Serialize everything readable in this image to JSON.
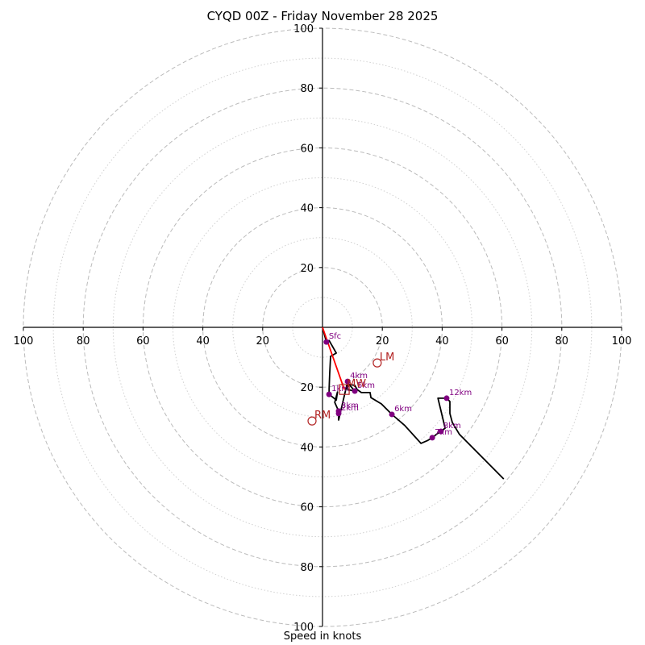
{
  "chart_data": {
    "type": "line",
    "title": "CYQD 00Z - Friday November 28 2025",
    "xlabel": "Speed in knots",
    "ylabel": "",
    "xlim": [
      -100,
      100
    ],
    "ylim": [
      -100,
      100
    ],
    "rings_major": [
      20,
      40,
      60,
      80,
      100
    ],
    "rings_minor": [
      10,
      30,
      50,
      70,
      90
    ],
    "x_tick_labels": [
      "100",
      "80",
      "60",
      "40",
      "20",
      "20",
      "40",
      "60",
      "80",
      "100"
    ],
    "y_tick_labels": [
      "100",
      "80",
      "60",
      "40",
      "20",
      "20",
      "40",
      "60",
      "80",
      "100"
    ],
    "hodograph": {
      "u": [
        0.0,
        1.3,
        2.2,
        4.6,
        2.7,
        2.4,
        2.2,
        2.2,
        4.6,
        5.0,
        4.1,
        5.4,
        5.4,
        8.4,
        8.4,
        10.8,
        8.9,
        10.8,
        11.6,
        13.0,
        15.9,
        16.2,
        19.7,
        23.2,
        27.5,
        32.9,
        35.0,
        36.7,
        38.3,
        39.6,
        41.0,
        38.6,
        41.5,
        42.6,
        42.6,
        43.4,
        45.8,
        60.6
      ],
      "v": [
        0.0,
        -4.9,
        -4.4,
        -8.6,
        -9.7,
        -15.6,
        -20.5,
        -22.4,
        -24.3,
        -21.6,
        -25.1,
        -28.0,
        -31.0,
        -18.1,
        -20.8,
        -21.3,
        -19.1,
        -19.4,
        -20.8,
        -21.8,
        -21.8,
        -23.5,
        -25.6,
        -29.1,
        -32.8,
        -38.8,
        -37.9,
        -36.9,
        -35.6,
        -34.8,
        -33.7,
        -23.7,
        -23.7,
        -24.8,
        -28.8,
        -31.8,
        -35.8,
        -50.7
      ]
    },
    "height_markers": [
      {
        "label": "Sfc",
        "u": 1.3,
        "v": -4.9
      },
      {
        "label": "1km",
        "u": 2.2,
        "v": -22.4
      },
      {
        "label": "2km",
        "u": 5.4,
        "v": -28.8
      },
      {
        "label": "3km",
        "u": 5.4,
        "v": -28.0
      },
      {
        "label": "4km",
        "u": 8.4,
        "v": -18.1
      },
      {
        "label": "5km",
        "u": 10.8,
        "v": -21.3
      },
      {
        "label": "6km",
        "u": 23.2,
        "v": -29.1
      },
      {
        "label": "7km",
        "u": 36.7,
        "v": -36.9
      },
      {
        "label": "8km",
        "u": 39.6,
        "v": -34.8
      },
      {
        "label": "12km",
        "u": 41.5,
        "v": -23.7
      }
    ],
    "storm_motions": [
      {
        "label": "LM",
        "u": 18.3,
        "v": -11.9,
        "marker": "circle"
      },
      {
        "label": "RM",
        "u": -3.5,
        "v": -31.3,
        "marker": "circle"
      },
      {
        "label": "MW",
        "u": 7.3,
        "v": -20.8,
        "marker": "square"
      }
    ],
    "mean_wind_vector": {
      "u": 7.3,
      "v": -20.8
    },
    "colors": {
      "trace": "#000000",
      "markers": "#800080",
      "storm": "#b22222",
      "vector": "#ff0000",
      "grid": "#bbbbbb"
    }
  }
}
